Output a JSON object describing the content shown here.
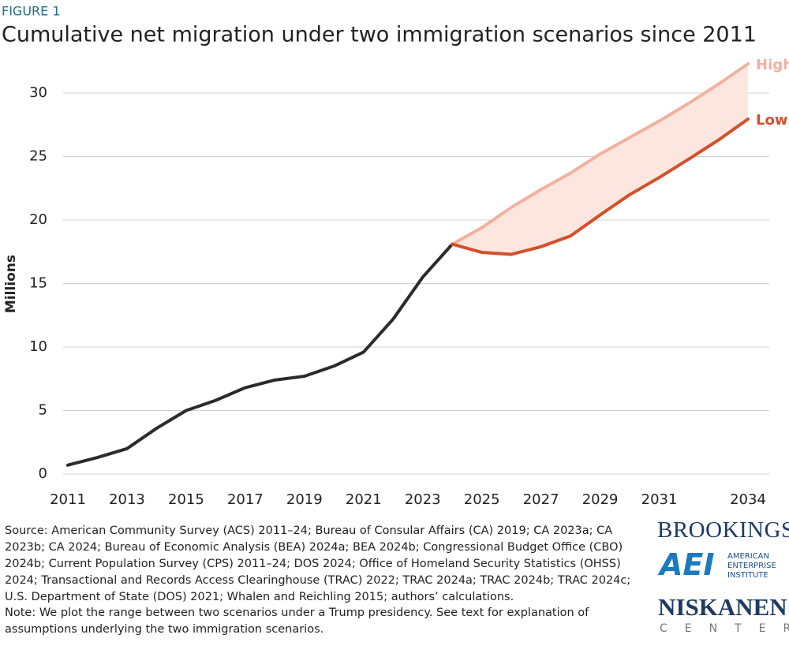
{
  "chart_data": {
    "type": "line",
    "label": "FIGURE 1",
    "title": "Cumulative net migration under two immigration scenarios since 2011",
    "ylabel": "Millions",
    "x": [
      2011,
      2012,
      2013,
      2014,
      2015,
      2016,
      2017,
      2018,
      2019,
      2020,
      2021,
      2022,
      2023,
      2024,
      2025,
      2026,
      2027,
      2028,
      2029,
      2030,
      2031,
      2032,
      2033,
      2034
    ],
    "series": [
      {
        "color": "#2b2b2b",
        "values": [
          0.7,
          1.3,
          2.0,
          3.6,
          5.0,
          5.8,
          6.8,
          7.4,
          7.7,
          8.5,
          9.6,
          12.2,
          15.5,
          18.1,
          null,
          null,
          null,
          null,
          null,
          null,
          null,
          null,
          null,
          null
        ]
      },
      {
        "name": "High",
        "color": "#f2b19f",
        "values": [
          null,
          null,
          null,
          null,
          null,
          null,
          null,
          null,
          null,
          null,
          null,
          null,
          null,
          18.1,
          19.4,
          21.0,
          22.4,
          23.7,
          25.2,
          26.5,
          27.8,
          29.2,
          30.7,
          32.3
        ]
      },
      {
        "name": "Low",
        "color": "#d4502b",
        "values": [
          null,
          null,
          null,
          null,
          null,
          null,
          null,
          null,
          null,
          null,
          null,
          null,
          null,
          18.1,
          17.45,
          17.3,
          17.9,
          18.75,
          20.4,
          22.0,
          23.35,
          24.8,
          26.3,
          27.95
        ]
      }
    ],
    "band_color": "#fde6df",
    "xlim": [
      2011,
      2034
    ],
    "xticks": [
      2011,
      2013,
      2015,
      2017,
      2019,
      2021,
      2023,
      2025,
      2027,
      2029,
      2031,
      2034
    ],
    "ylim": [
      0,
      32.5
    ],
    "yticks": [
      0,
      5,
      10,
      15,
      20,
      25,
      30
    ],
    "grid": true,
    "source": "Source: American Community Survey (ACS) 2011–24; Bureau of Consular Affairs (CA) 2019; CA 2023a; CA 2023b; CA 2024; Bureau of Economic Analysis (BEA) 2024a; BEA 2024b; Congressional Budget Office (CBO) 2024b; Current Population Survey (CPS) 2011–24; DOS 2024; Office of Homeland Security Statistics (OHSS) 2024; Transactional and Records Access Clearinghouse (TRAC) 2022; TRAC 2024a; TRAC 2024b; TRAC 2024c; U.S. Department of State (DOS) 2021; Whalen and Reichling 2015; authors’ calculations.",
    "note": "Note: We plot the range between two scenarios under a Trump presidency. See text for explanation of assumptions underlying the two immigration scenarios."
  },
  "logos": {
    "brookings": "BROOKINGS",
    "aei": "AEI",
    "aei_name": "AMERICAN ENTERPRISE INSTITUTE",
    "niskanen": "NISKANEN",
    "center": "CENTER"
  }
}
